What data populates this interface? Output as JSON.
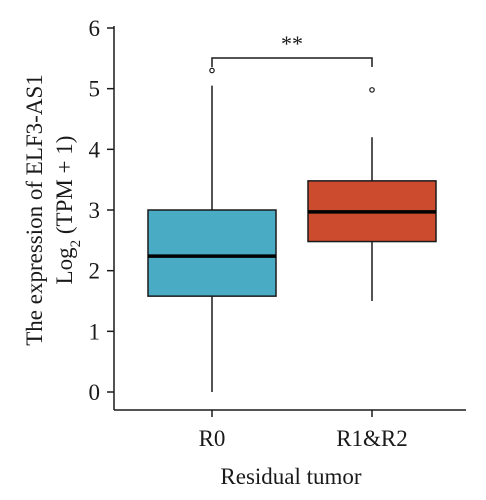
{
  "chart_data": {
    "type": "boxplot",
    "xlabel": "Residual tumor",
    "ylabel_line1": "The expression of ELF3-AS1",
    "ylabel_line2_prefix": "Log",
    "ylabel_line2_subscript": "2",
    "ylabel_line2_suffix": " (TPM + 1)",
    "ylim": [
      0,
      6
    ],
    "yticks": [
      0,
      1,
      2,
      3,
      4,
      5,
      6
    ],
    "categories": [
      "R0",
      "R1&R2"
    ],
    "boxes": [
      {
        "category": "R0",
        "min": 0.0,
        "q1": 1.58,
        "median": 2.24,
        "q3": 3.0,
        "max": 5.05,
        "outliers": [
          5.3
        ],
        "color": "#4aabc5"
      },
      {
        "category": "R1&R2",
        "min": 1.5,
        "q1": 2.48,
        "median": 2.97,
        "q3": 3.48,
        "max": 4.2,
        "outliers": [
          4.98
        ],
        "color": "#cc4a2e"
      }
    ],
    "significance": {
      "label": "**",
      "between": [
        "R0",
        "R1&R2"
      ],
      "y": 5.5
    }
  }
}
